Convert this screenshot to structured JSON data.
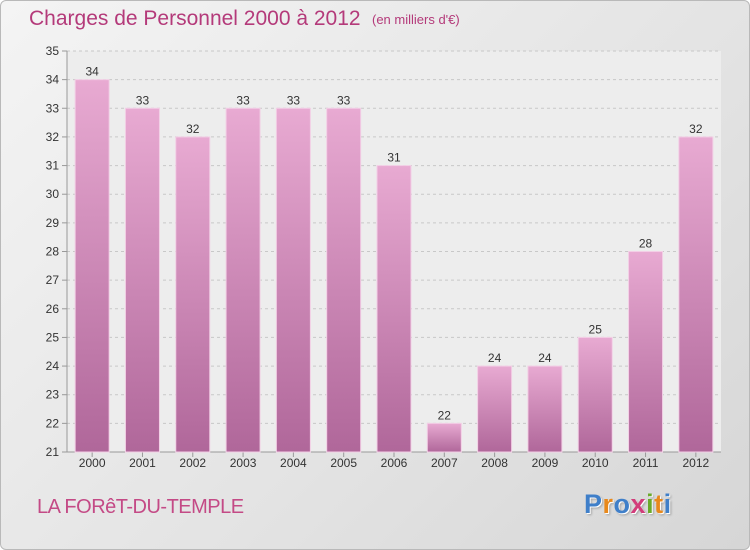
{
  "header": {
    "title": "Charges de Personnel 2000 à 2012",
    "subtitle": "(en milliers d'€)"
  },
  "footer": {
    "commune": "LA FORêT-DU-TEMPLE",
    "logo_letters": [
      "P",
      "r",
      "o",
      "x",
      "i",
      "t",
      "i"
    ]
  },
  "colors": {
    "bar_top": "#e8aad2",
    "bar_bottom": "#b0679a",
    "title": "#b43a7a",
    "logo": [
      "#3f7fc9",
      "#e8891c",
      "#3f7fc9",
      "#d23c7a",
      "#6aaa2a",
      "#e8891c",
      "#3f7fc9"
    ]
  },
  "chart_data": {
    "type": "bar",
    "categories": [
      "2000",
      "2001",
      "2002",
      "2003",
      "2004",
      "2005",
      "2006",
      "2007",
      "2008",
      "2009",
      "2010",
      "2011",
      "2012"
    ],
    "values": [
      34,
      33,
      32,
      33,
      33,
      33,
      31,
      22,
      24,
      24,
      25,
      28,
      32
    ],
    "title": "Charges de Personnel 2000 à 2012",
    "subtitle": "(en milliers d'€)",
    "xlabel": "",
    "ylabel": "",
    "ylim": [
      21,
      35
    ],
    "yticks": [
      21,
      22,
      23,
      24,
      25,
      26,
      27,
      28,
      29,
      30,
      31,
      32,
      33,
      34,
      35
    ],
    "grid": true,
    "data_labels": true
  }
}
